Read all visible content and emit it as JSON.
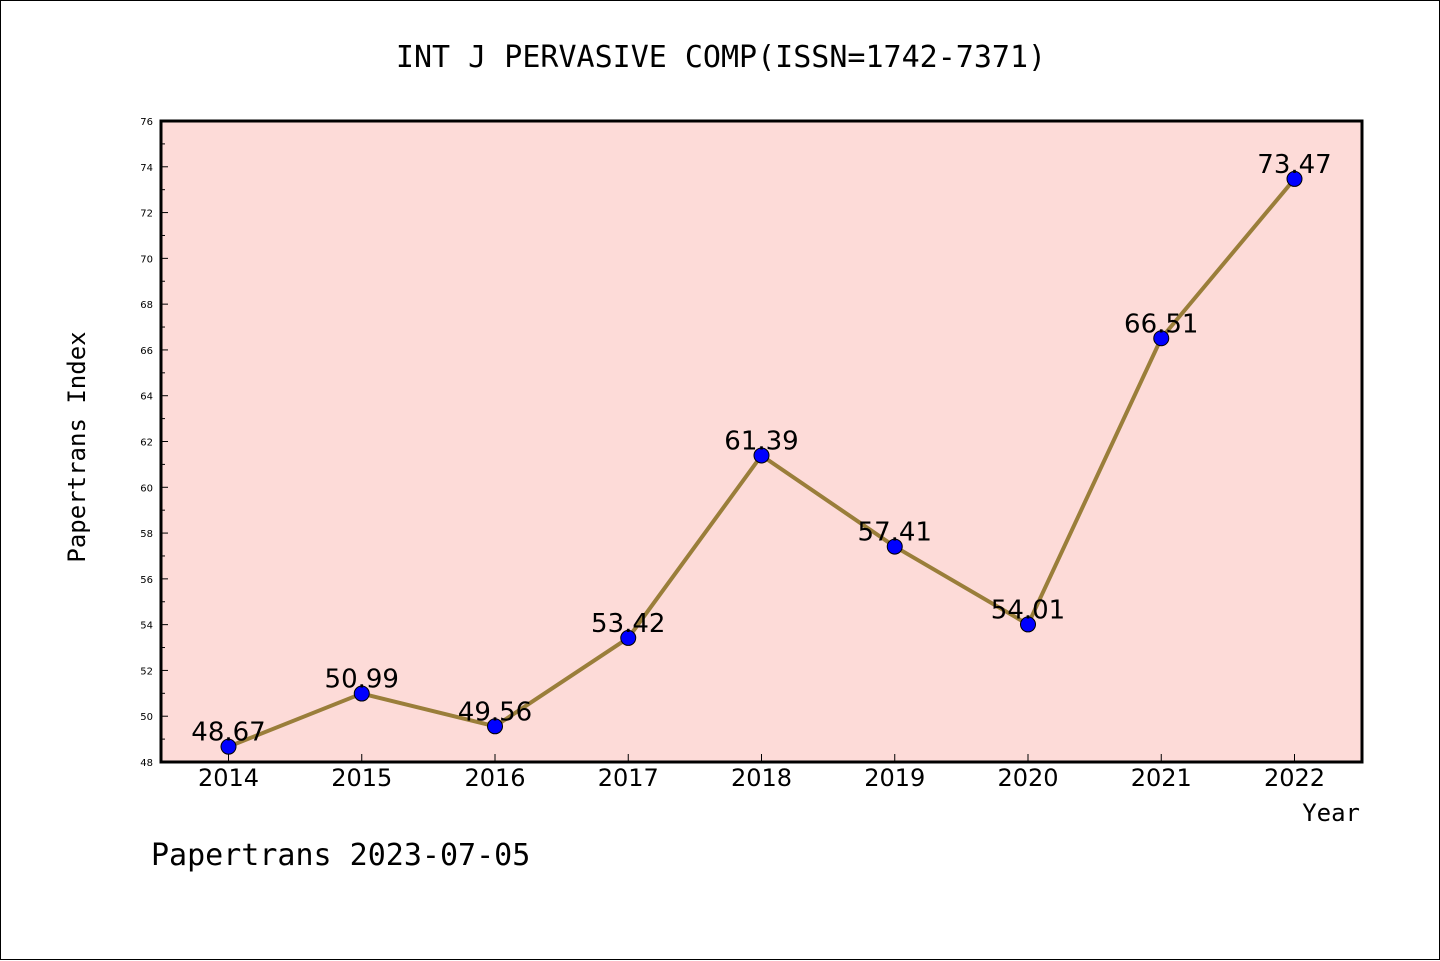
{
  "chart_data": {
    "type": "line",
    "title": "INT J PERVASIVE COMP(ISSN=1742-7371)",
    "xlabel": "Year",
    "ylabel": "Papertrans Index",
    "categories": [
      "2014",
      "2015",
      "2016",
      "2017",
      "2018",
      "2019",
      "2020",
      "2021",
      "2022"
    ],
    "series": [
      {
        "values": [
          48.67,
          50.99,
          49.56,
          53.42,
          61.39,
          57.41,
          54.01,
          66.51,
          73.47
        ],
        "data_labels": [
          "48.67",
          "50.99",
          "49.56",
          "53.42",
          "61.39",
          "57.41",
          "54.01",
          "66.51",
          "73.47"
        ]
      }
    ],
    "ylim": [
      48,
      76
    ],
    "yticks": [
      48,
      50,
      52,
      54,
      56,
      58,
      60,
      62,
      64,
      66,
      68,
      70,
      72,
      74,
      76
    ],
    "grid": false,
    "colors": {
      "plot_background": "#fddbd8",
      "line": "#9a7e3a",
      "marker": "#0000ff",
      "marker_edge": "#000000"
    }
  },
  "footer": "Papertrans 2023-07-05"
}
